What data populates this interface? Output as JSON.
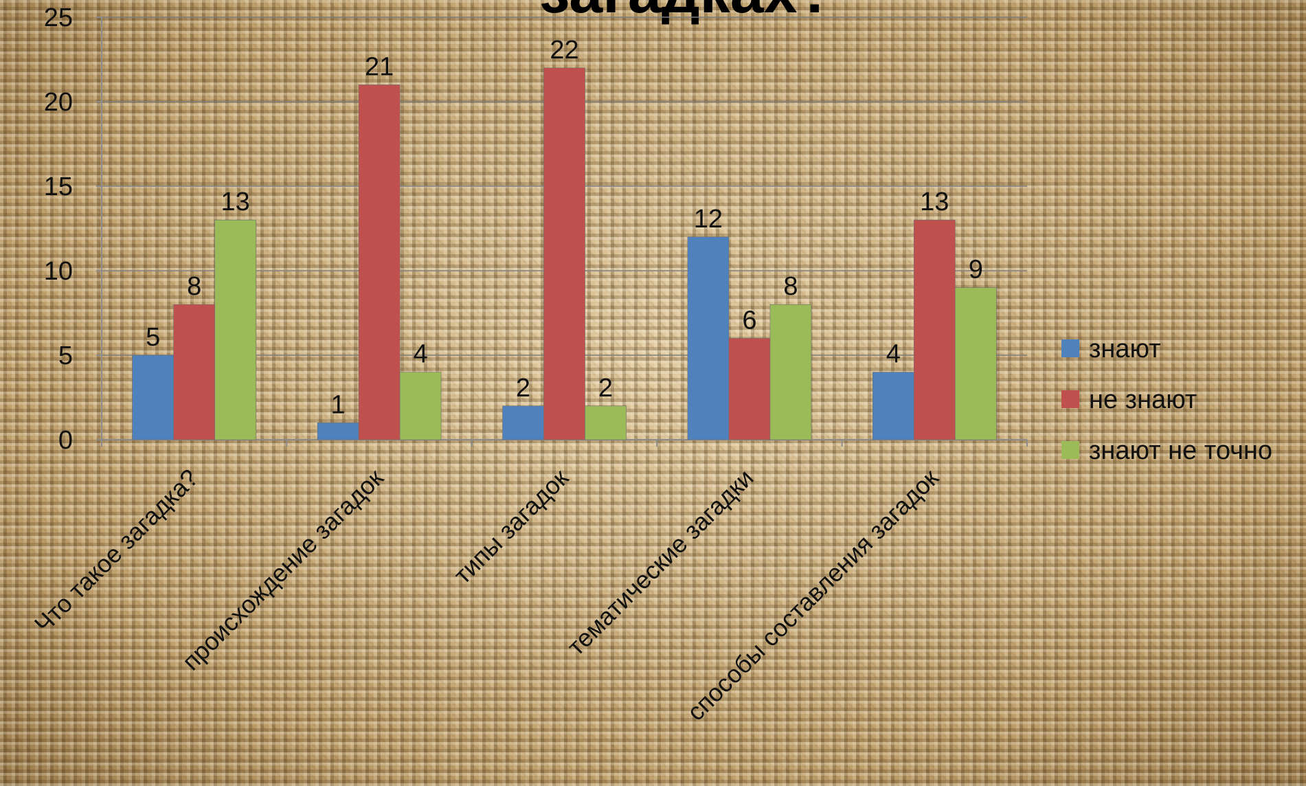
{
  "chart_data": {
    "type": "bar",
    "title": "загадках?",
    "categories": [
      "Что такое загадка?",
      "происхождение загадок",
      "типы загадок",
      "тематические загадки",
      "способы составления загадок"
    ],
    "series": [
      {
        "name": "знают",
        "values": [
          5,
          1,
          2,
          12,
          4
        ],
        "color": "#4f81bd"
      },
      {
        "name": "не знают",
        "values": [
          8,
          21,
          22,
          6,
          13
        ],
        "color": "#c0504d"
      },
      {
        "name": "знают не точно",
        "values": [
          13,
          4,
          2,
          8,
          9
        ],
        "color": "#9bbb59"
      }
    ],
    "yticks": [
      0,
      5,
      10,
      15,
      20,
      25
    ],
    "ylim": [
      0,
      25
    ],
    "grid": true,
    "legend_position": "right",
    "data_labels": true
  }
}
